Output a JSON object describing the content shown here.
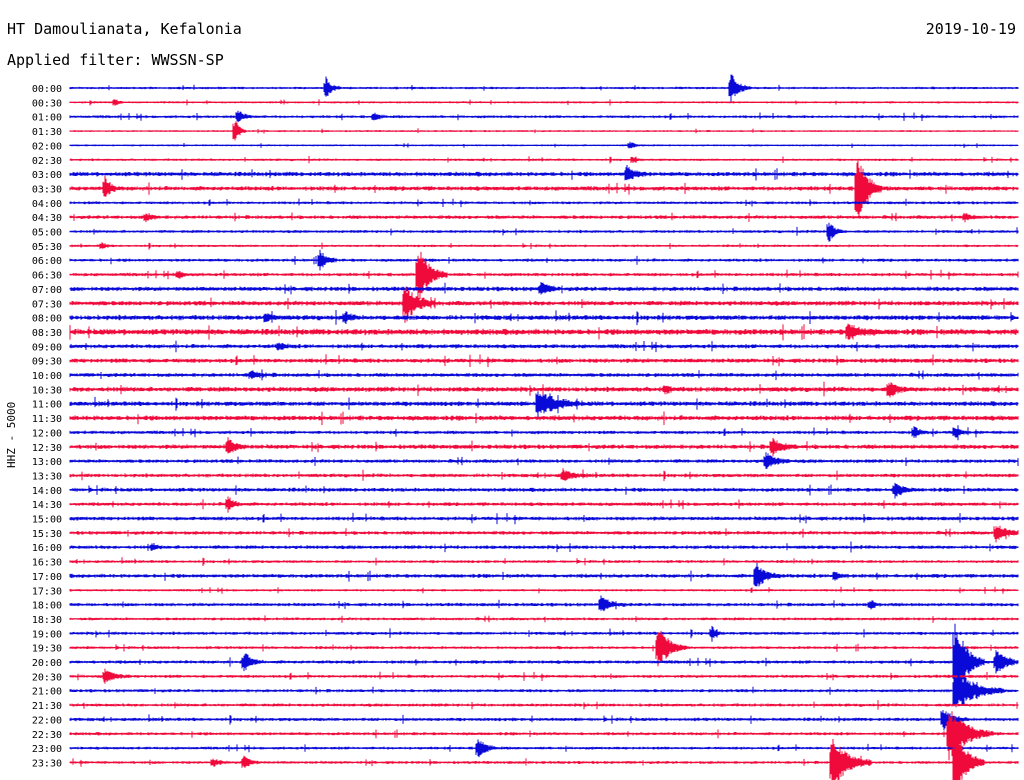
{
  "header": {
    "title": "HT Damoulianata, Kefalonia",
    "date": "2019-10-19",
    "filter_line": "Applied filter: WWSSN-SP"
  },
  "colors": {
    "even_trace": "#0a0ad8",
    "odd_trace": "#f00a3c",
    "text": "#000000"
  },
  "chart_data": {
    "type": "line",
    "title": "HT Damoulianata, Kefalonia",
    "ylabel": "HHZ - 5000",
    "date": "2019-10-19",
    "row_labels": [
      "00:00",
      "00:30",
      "01:00",
      "01:30",
      "02:00",
      "02:30",
      "03:00",
      "03:30",
      "04:00",
      "04:30",
      "05:00",
      "05:30",
      "06:00",
      "06:30",
      "07:00",
      "07:30",
      "08:00",
      "08:30",
      "09:00",
      "09:30",
      "10:00",
      "10:30",
      "11:00",
      "11:30",
      "12:00",
      "12:30",
      "13:00",
      "13:30",
      "14:00",
      "14:30",
      "15:00",
      "15:30",
      "16:00",
      "16:30",
      "17:00",
      "17:30",
      "18:00",
      "18:30",
      "19:00",
      "19:30",
      "20:00",
      "20:30",
      "21:00",
      "21:30",
      "22:00",
      "22:30",
      "23:00",
      "23:30"
    ],
    "row_noise": [
      1.0,
      0.9,
      1.2,
      0.8,
      0.8,
      1.0,
      1.8,
      1.8,
      1.2,
      1.5,
      1.2,
      1.0,
      1.3,
      1.4,
      1.8,
      1.9,
      2.0,
      2.4,
      1.7,
      1.8,
      1.6,
      2.0,
      1.9,
      2.0,
      1.4,
      1.8,
      1.5,
      1.5,
      1.6,
      1.5,
      1.6,
      1.5,
      1.5,
      1.2,
      1.6,
      1.0,
      1.4,
      1.2,
      1.3,
      1.2,
      1.4,
      1.3,
      1.3,
      1.3,
      1.4,
      1.3,
      1.2,
      1.2
    ],
    "events": [
      {
        "row": 0,
        "minute": 8.1,
        "amp": 11,
        "decay": 0.3
      },
      {
        "row": 0,
        "minute": 20.9,
        "amp": 16,
        "decay": 0.4
      },
      {
        "row": 1,
        "minute": 1.4,
        "amp": 4,
        "decay": 0.2
      },
      {
        "row": 2,
        "minute": 5.3,
        "amp": 6,
        "decay": 0.4
      },
      {
        "row": 2,
        "minute": 9.6,
        "amp": 4,
        "decay": 0.3
      },
      {
        "row": 3,
        "minute": 5.2,
        "amp": 14,
        "decay": 0.25
      },
      {
        "row": 4,
        "minute": 17.7,
        "amp": 4,
        "decay": 0.3
      },
      {
        "row": 5,
        "minute": 17.8,
        "amp": 3,
        "decay": 0.2
      },
      {
        "row": 6,
        "minute": 17.6,
        "amp": 9,
        "decay": 0.4
      },
      {
        "row": 7,
        "minute": 1.1,
        "amp": 12,
        "decay": 0.3
      },
      {
        "row": 7,
        "minute": 24.9,
        "amp": 40,
        "decay": 0.5
      },
      {
        "row": 9,
        "minute": 2.4,
        "amp": 4,
        "decay": 0.3
      },
      {
        "row": 9,
        "minute": 28.3,
        "amp": 4,
        "decay": 0.3
      },
      {
        "row": 10,
        "minute": 24.0,
        "amp": 13,
        "decay": 0.3
      },
      {
        "row": 11,
        "minute": 1.0,
        "amp": 4,
        "decay": 0.2
      },
      {
        "row": 12,
        "minute": 7.9,
        "amp": 10,
        "decay": 0.35
      },
      {
        "row": 13,
        "minute": 3.4,
        "amp": 4,
        "decay": 0.3
      },
      {
        "row": 13,
        "minute": 11.0,
        "amp": 30,
        "decay": 0.6
      },
      {
        "row": 14,
        "minute": 14.9,
        "amp": 6,
        "decay": 0.4
      },
      {
        "row": 15,
        "minute": 10.6,
        "amp": 20,
        "decay": 0.6
      },
      {
        "row": 16,
        "minute": 6.2,
        "amp": 5,
        "decay": 0.3
      },
      {
        "row": 16,
        "minute": 8.7,
        "amp": 5,
        "decay": 0.3
      },
      {
        "row": 17,
        "minute": 24.6,
        "amp": 9,
        "decay": 0.6
      },
      {
        "row": 18,
        "minute": 6.6,
        "amp": 4,
        "decay": 0.3
      },
      {
        "row": 20,
        "minute": 5.7,
        "amp": 4,
        "decay": 0.5
      },
      {
        "row": 21,
        "minute": 18.8,
        "amp": 4,
        "decay": 0.3
      },
      {
        "row": 21,
        "minute": 25.9,
        "amp": 9,
        "decay": 0.4
      },
      {
        "row": 22,
        "minute": 14.8,
        "amp": 14,
        "decay": 0.9
      },
      {
        "row": 24,
        "minute": 26.7,
        "amp": 6,
        "decay": 0.3
      },
      {
        "row": 24,
        "minute": 28.0,
        "amp": 6,
        "decay": 0.3
      },
      {
        "row": 25,
        "minute": 5.0,
        "amp": 8,
        "decay": 0.4
      },
      {
        "row": 25,
        "minute": 22.2,
        "amp": 9,
        "decay": 0.5
      },
      {
        "row": 26,
        "minute": 22.0,
        "amp": 9,
        "decay": 0.5
      },
      {
        "row": 27,
        "minute": 15.6,
        "amp": 6,
        "decay": 0.5
      },
      {
        "row": 28,
        "minute": 26.1,
        "amp": 8,
        "decay": 0.4
      },
      {
        "row": 29,
        "minute": 5.0,
        "amp": 8,
        "decay": 0.3
      },
      {
        "row": 31,
        "minute": 29.3,
        "amp": 8,
        "decay": 0.6
      },
      {
        "row": 32,
        "minute": 2.6,
        "amp": 4,
        "decay": 0.2
      },
      {
        "row": 34,
        "minute": 21.7,
        "amp": 14,
        "decay": 0.5
      },
      {
        "row": 34,
        "minute": 24.2,
        "amp": 5,
        "decay": 0.3
      },
      {
        "row": 36,
        "minute": 16.8,
        "amp": 8,
        "decay": 0.5
      },
      {
        "row": 36,
        "minute": 25.3,
        "amp": 5,
        "decay": 0.3
      },
      {
        "row": 38,
        "minute": 20.3,
        "amp": 8,
        "decay": 0.2
      },
      {
        "row": 39,
        "minute": 18.6,
        "amp": 22,
        "decay": 0.6
      },
      {
        "row": 40,
        "minute": 5.5,
        "amp": 10,
        "decay": 0.4
      },
      {
        "row": 40,
        "minute": 29.3,
        "amp": 12,
        "decay": 0.6
      },
      {
        "row": 40,
        "minute": 28.0,
        "amp": 45,
        "decay": 0.6
      },
      {
        "row": 41,
        "minute": 1.1,
        "amp": 7,
        "decay": 0.5
      },
      {
        "row": 42,
        "minute": 28.0,
        "amp": 22,
        "decay": 1.0
      },
      {
        "row": 44,
        "minute": 27.6,
        "amp": 12,
        "decay": 0.5
      },
      {
        "row": 45,
        "minute": 27.8,
        "amp": 30,
        "decay": 0.9
      },
      {
        "row": 46,
        "minute": 12.9,
        "amp": 11,
        "decay": 0.4
      },
      {
        "row": 47,
        "minute": 4.5,
        "amp": 5,
        "decay": 0.3
      },
      {
        "row": 47,
        "minute": 5.5,
        "amp": 8,
        "decay": 0.3
      },
      {
        "row": 47,
        "minute": 24.1,
        "amp": 30,
        "decay": 0.8
      },
      {
        "row": 47,
        "minute": 28.0,
        "amp": 40,
        "decay": 0.6
      }
    ],
    "x_range_minutes": [
      0,
      30
    ],
    "grid": false,
    "legend": "none"
  }
}
